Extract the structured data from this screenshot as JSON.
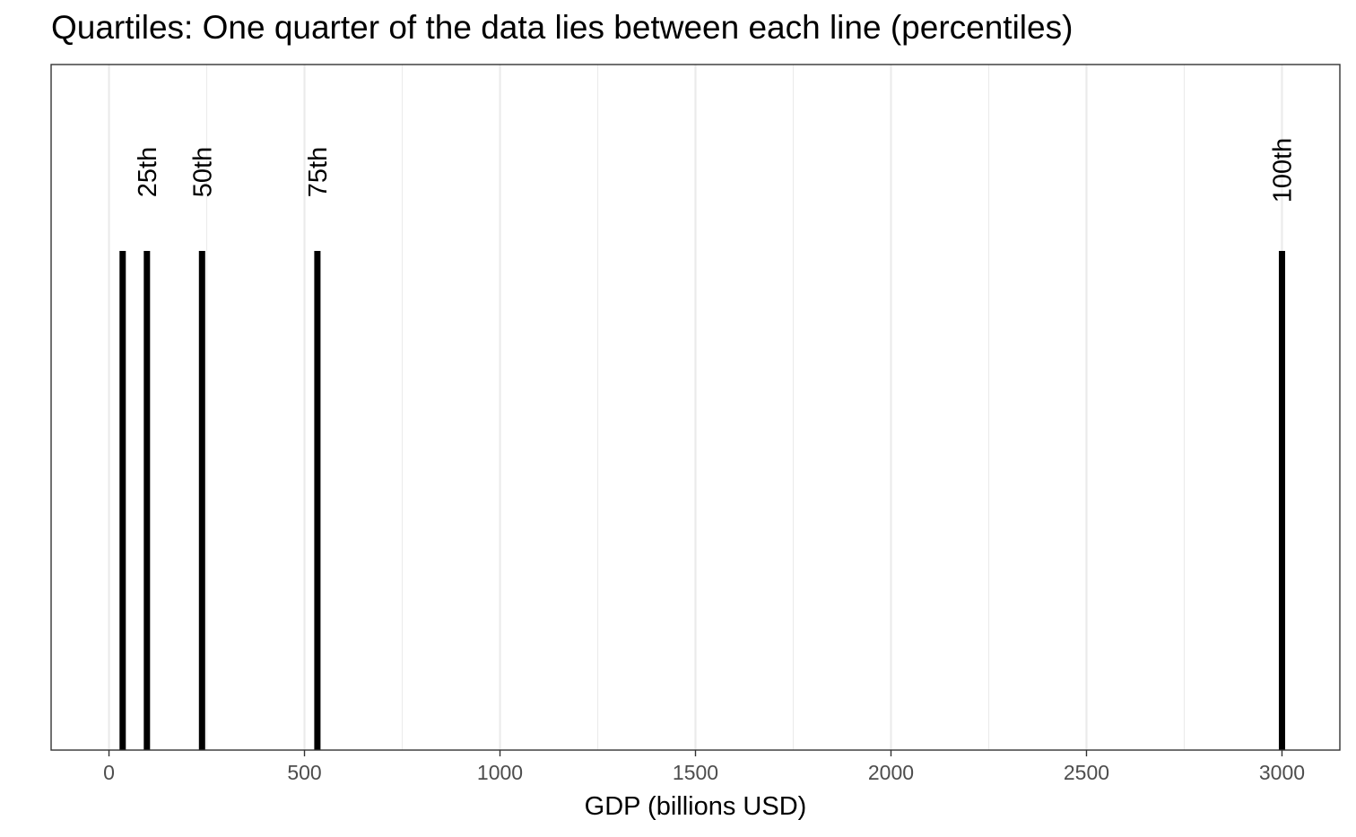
{
  "chart_data": {
    "type": "bar",
    "title": "Quartiles: One quarter of the data lies between each line (percentiles)",
    "xlabel": "GDP (billions USD)",
    "ylabel": "",
    "xlim": [
      -148,
      3148
    ],
    "x_ticks": [
      0,
      500,
      1000,
      1500,
      2000,
      2500,
      3000
    ],
    "x_tick_labels": [
      "0",
      "500",
      "1000",
      "1500",
      "2000",
      "2500",
      "3000"
    ],
    "grid": true,
    "legend": "none",
    "line_color": "#000000",
    "lines": [
      {
        "x": 35,
        "label": ""
      },
      {
        "x": 97,
        "label": "25th"
      },
      {
        "x": 238,
        "label": "50th"
      },
      {
        "x": 533,
        "label": "75th"
      },
      {
        "x": 3000,
        "label": "100th"
      }
    ]
  }
}
